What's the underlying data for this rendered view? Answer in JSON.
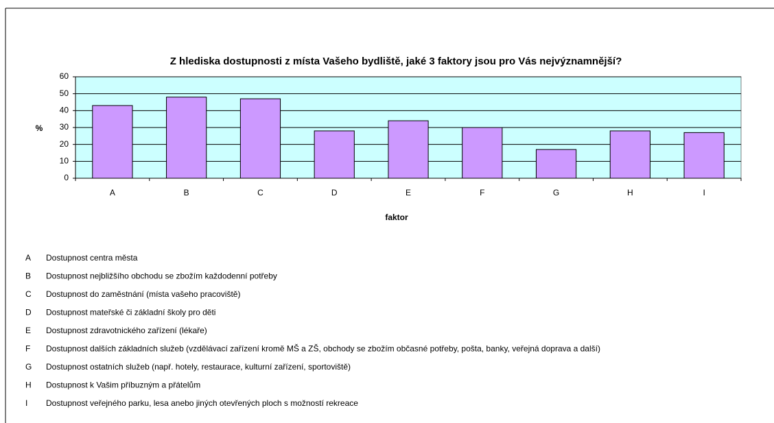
{
  "chart_data": {
    "type": "bar",
    "title": "Z hlediska dostupnosti z místa Vašeho bydliště, jaké 3 faktory jsou pro Vás nejvýznamnější?",
    "y_label": "%",
    "x_label": "faktor",
    "categories": [
      "A",
      "B",
      "C",
      "D",
      "E",
      "F",
      "G",
      "H",
      "I"
    ],
    "values": [
      43,
      48,
      47,
      28,
      34,
      30,
      17,
      28,
      27
    ],
    "color": "#cc99ff",
    "plot_background": "#ccffff",
    "ylim": [
      0,
      60
    ],
    "yticks": [
      0,
      10,
      20,
      30,
      40,
      50,
      60
    ],
    "grid": true,
    "key": [
      {
        "code": "A",
        "text": "Dostupnost centra města"
      },
      {
        "code": "B",
        "text": "Dostupnost nejbližšího obchodu se zbožím každodenní potřeby"
      },
      {
        "code": "C",
        "text": "Dostupnost do zaměstnání (místa vašeho pracoviště)"
      },
      {
        "code": "D",
        "text": "Dostupnost mateřské či základní školy pro děti"
      },
      {
        "code": "E",
        "text": "Dostupnost zdravotnického zařízení (lékaře)"
      },
      {
        "code": "F",
        "text": "Dostupnost dalších základních služeb (vzdělávací zařízení kromě MŠ a ZŠ, obchody se zbožím občasné potřeby, pošta, banky, veřejná doprava a další)"
      },
      {
        "code": "G",
        "text": "Dostupnost ostatních služeb (např. hotely, restaurace, kulturní zařízení, sportoviště)"
      },
      {
        "code": "H",
        "text": "Dostupnost k Vašim příbuzným a přátelům"
      },
      {
        "code": "I",
        "text": "Dostupnost veřejného parku, lesa anebo jiných otevřených ploch s možností rekreace"
      }
    ]
  }
}
